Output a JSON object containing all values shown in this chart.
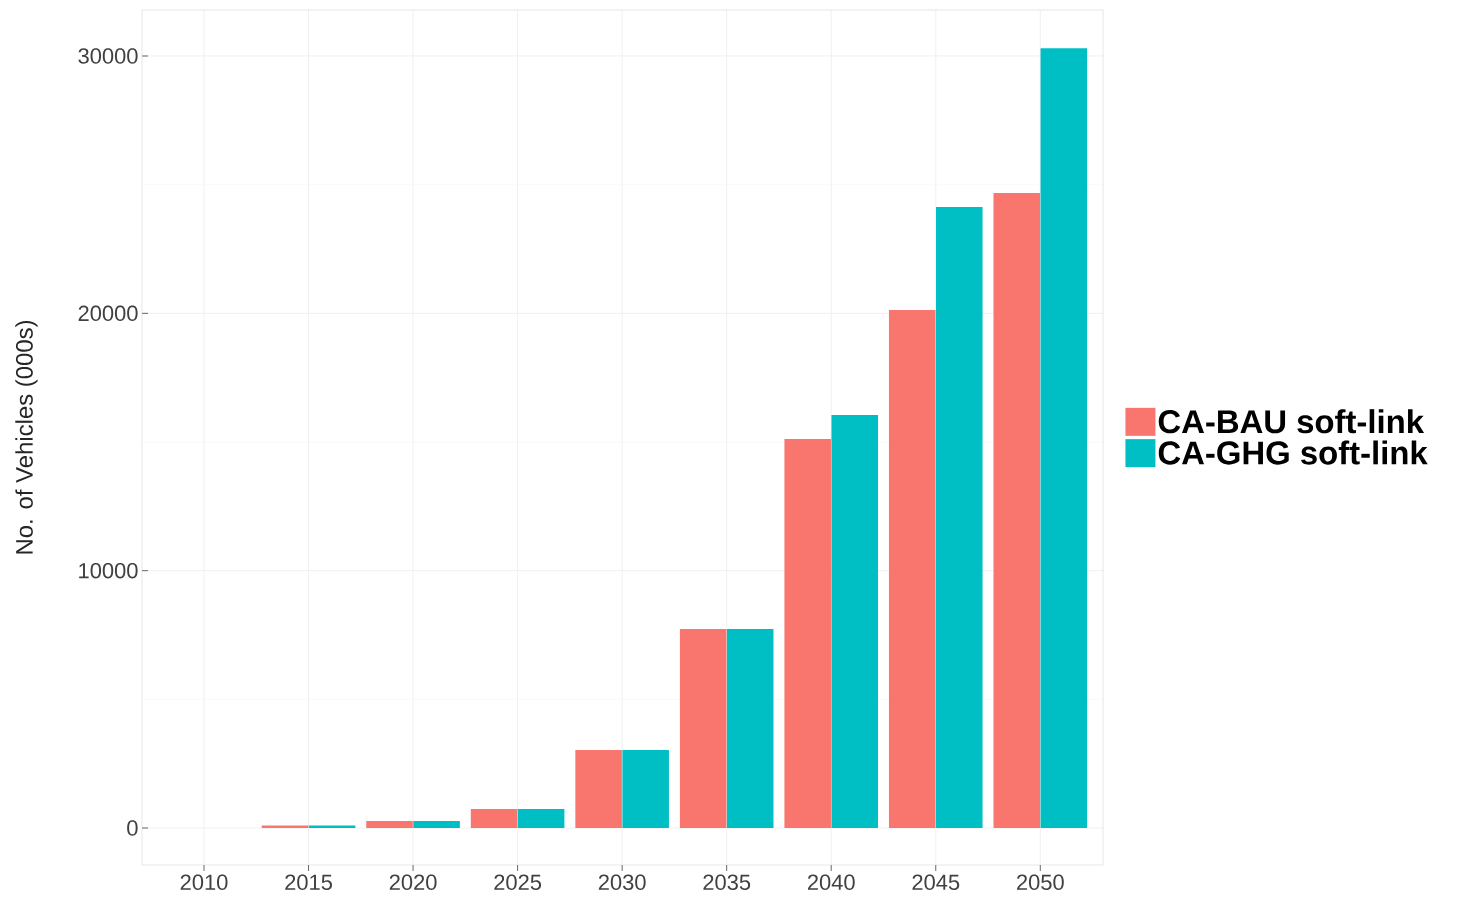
{
  "chart_data": {
    "type": "bar",
    "ylabel": "No. of Vehicles (000s)",
    "categories": [
      "2010",
      "2015",
      "2020",
      "2025",
      "2030",
      "2035",
      "2040",
      "2045",
      "2050"
    ],
    "series": [
      {
        "name": "CA-BAU soft-link",
        "color": "#f8766d",
        "values": [
          0,
          100,
          270,
          740,
          3030,
          7730,
          15120,
          20130,
          24680
        ]
      },
      {
        "name": "CA-GHG soft-link",
        "color": "#00bfc4",
        "values": [
          0,
          100,
          270,
          740,
          3030,
          7730,
          16050,
          24130,
          30300
        ]
      }
    ],
    "ylim": [
      -1438,
      31788
    ],
    "yticks": [
      0,
      10000,
      20000,
      30000
    ],
    "grid": true,
    "legend": "right"
  }
}
